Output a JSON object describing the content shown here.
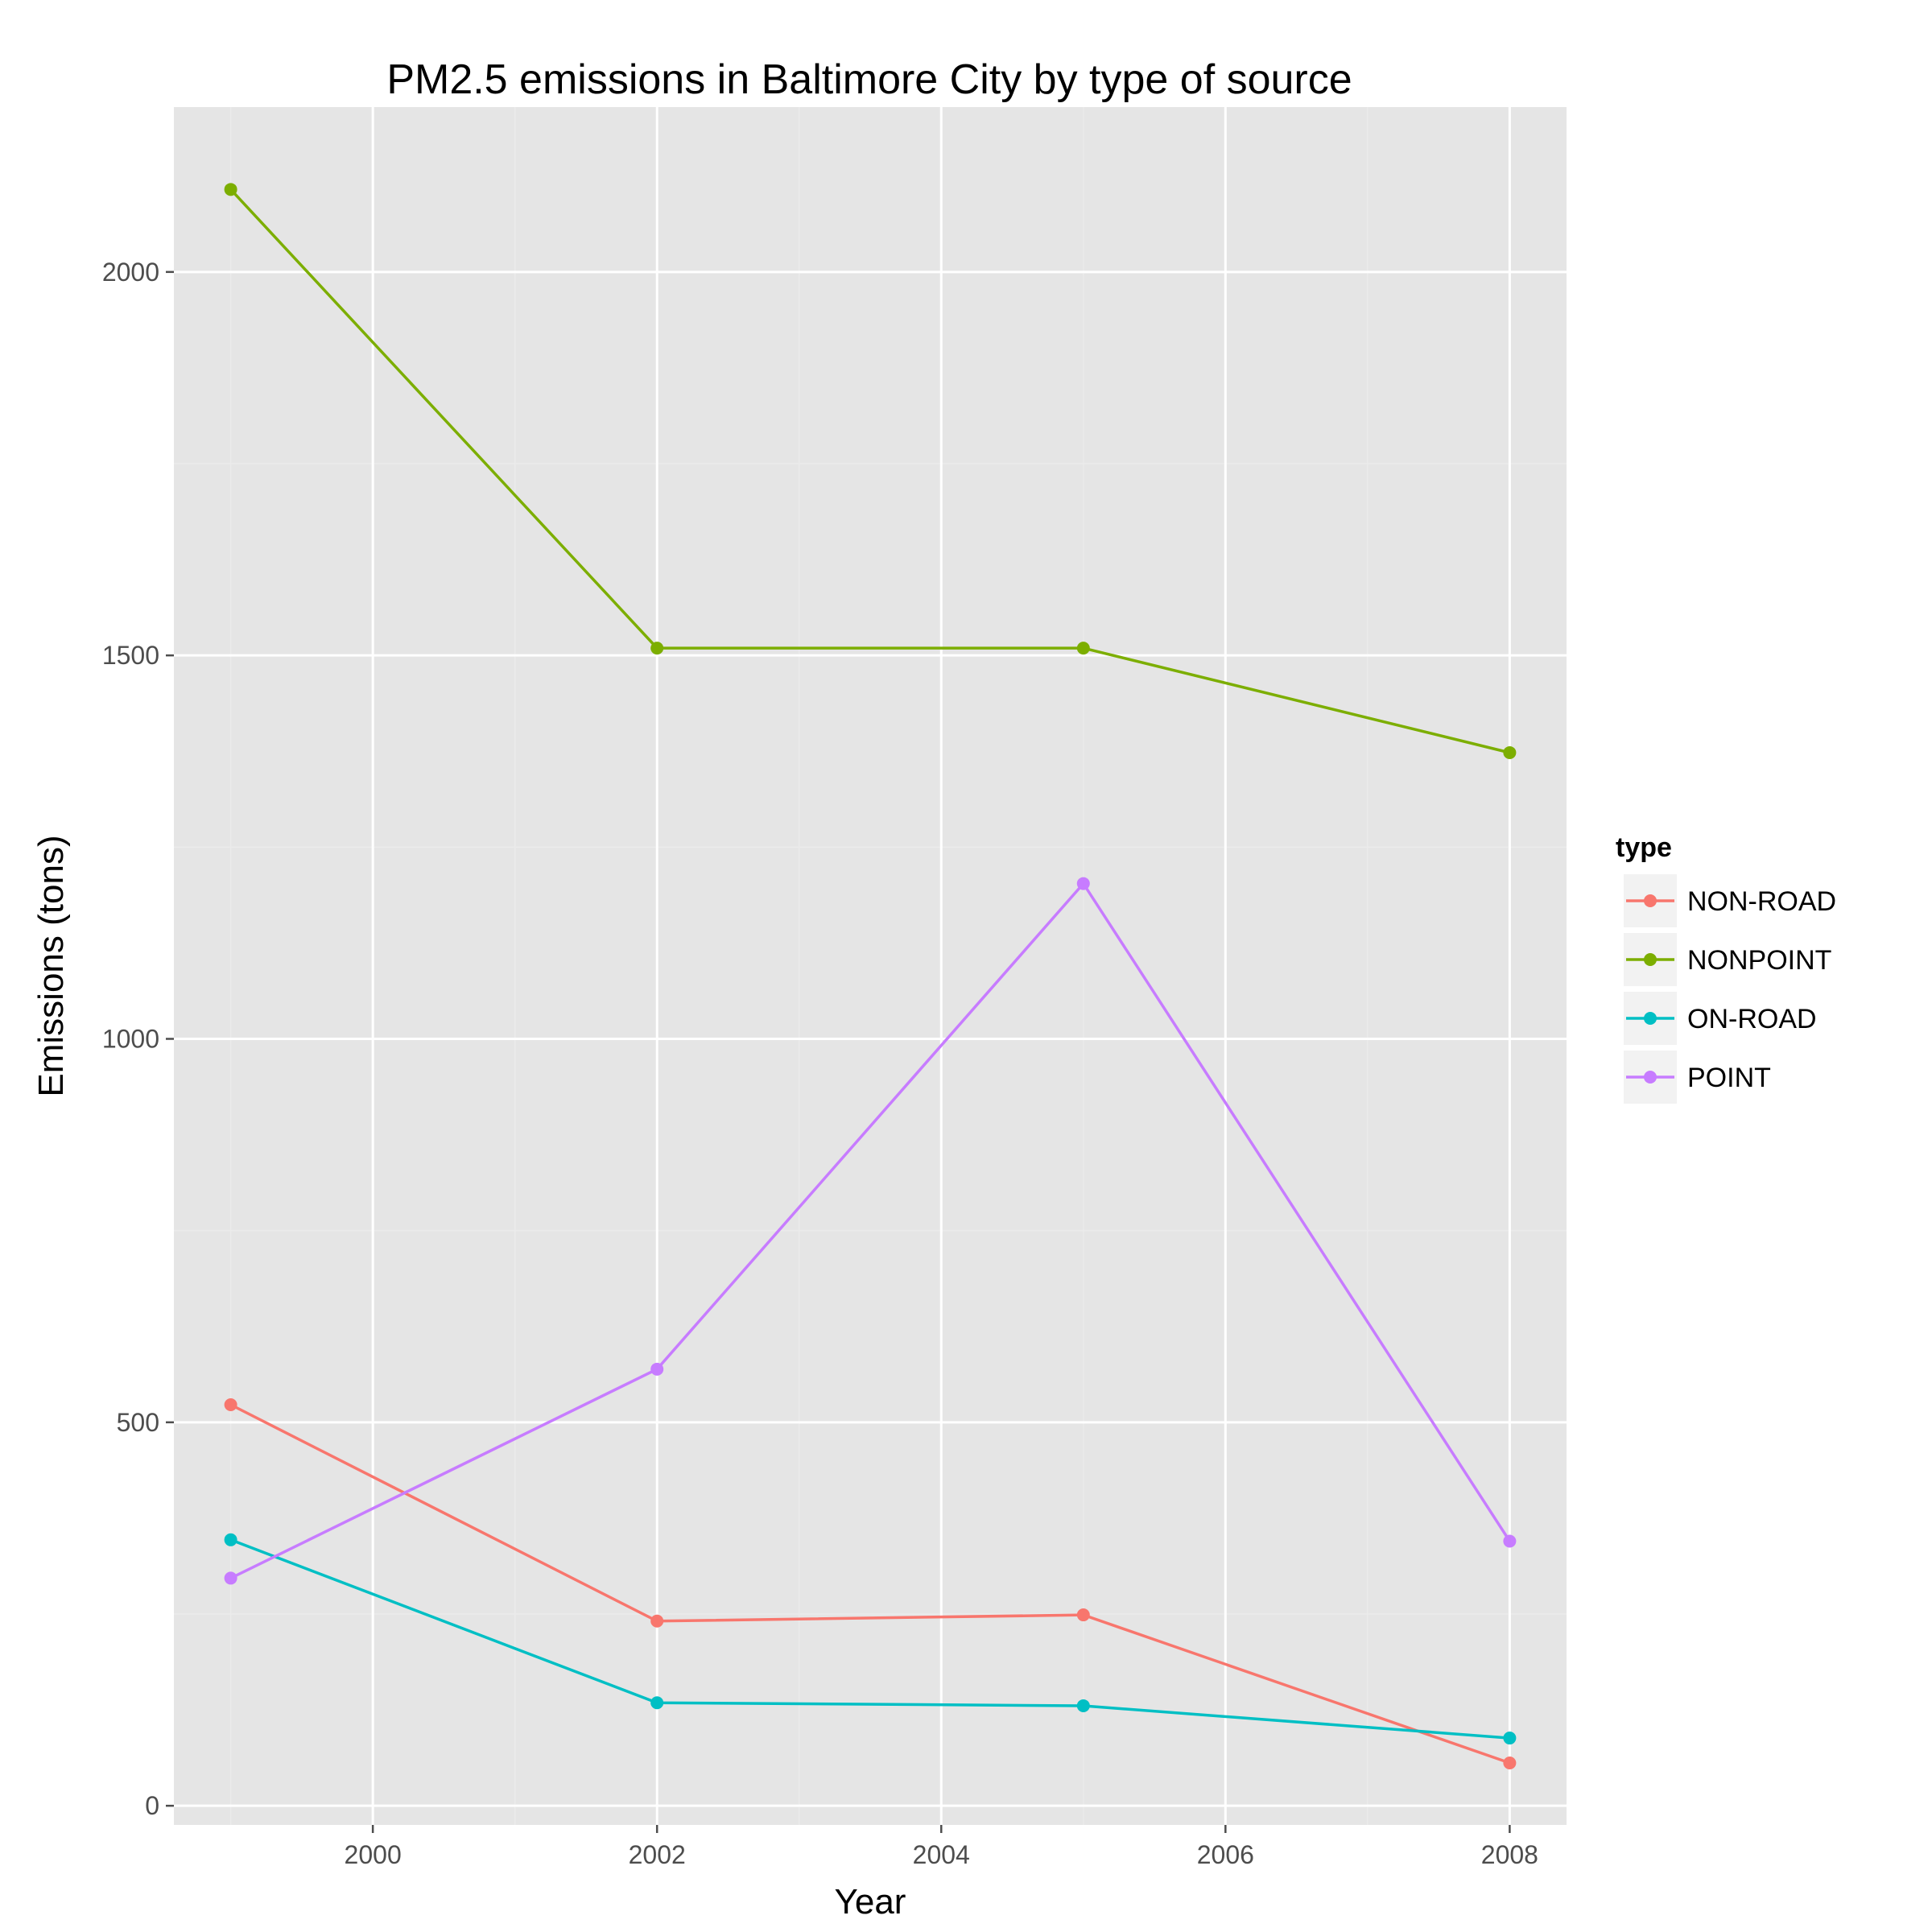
{
  "chart_data": {
    "type": "line",
    "title": "PM2.5 emissions in Baltimore City by type of source",
    "xlabel": "Year",
    "ylabel": "Emissions (tons)",
    "x": [
      1999,
      2002,
      2005,
      2008
    ],
    "xlim": [
      1998.6,
      2008.4
    ],
    "ylim": [
      -25,
      2215
    ],
    "x_ticks": [
      2000,
      2002,
      2004,
      2006,
      2008
    ],
    "y_ticks": [
      0,
      500,
      1000,
      1500,
      2000
    ],
    "grid": true,
    "legend": {
      "title": "type",
      "placement": "right"
    },
    "series": [
      {
        "name": "NON-ROAD",
        "color": "#f8766d",
        "values": [
          522.9,
          240.8,
          248.9,
          55.8
        ]
      },
      {
        "name": "NONPOINT",
        "color": "#7cae00",
        "values": [
          2107.6,
          1509.5,
          1509.5,
          1373.2
        ]
      },
      {
        "name": "ON-ROAD",
        "color": "#00bfc4",
        "values": [
          346.8,
          134.3,
          130.4,
          88.3
        ]
      },
      {
        "name": "POINT",
        "color": "#c77cff",
        "values": [
          296.8,
          569.3,
          1202.5,
          344.98
        ]
      }
    ]
  }
}
